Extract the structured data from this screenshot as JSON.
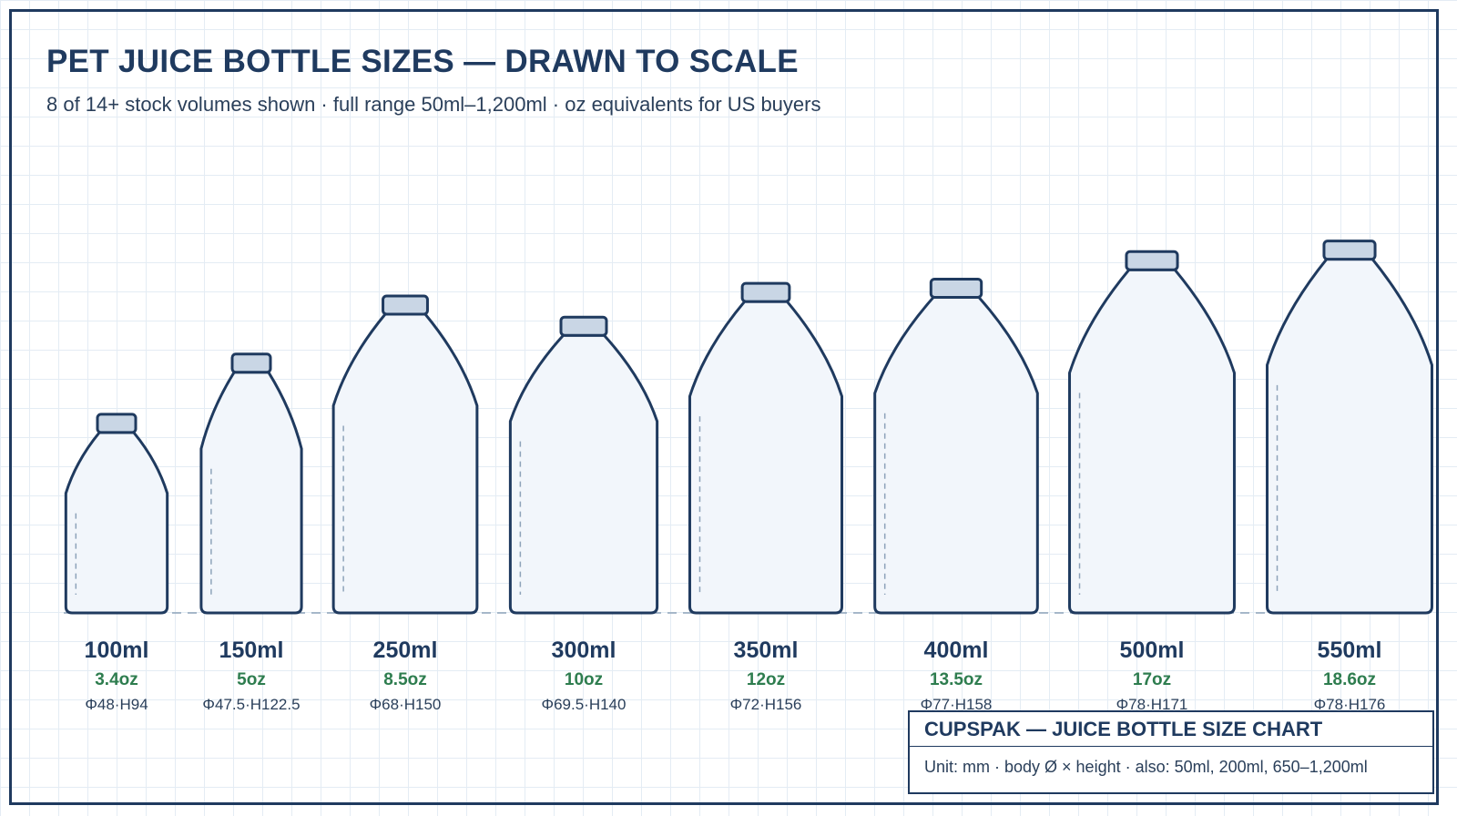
{
  "title": "PET JUICE BOTTLE SIZES — DRAWN TO SCALE",
  "subtitle": "8 of 14+ stock volumes shown · full range 50ml–1,200ml · oz equivalents for US buyers",
  "bottles": [
    {
      "volume": "100ml",
      "oz": "3.4oz",
      "dims": "Φ48·H94",
      "diameter_mm": 48,
      "height_mm": 94
    },
    {
      "volume": "150ml",
      "oz": "5oz",
      "dims": "Φ47.5·H122.5",
      "diameter_mm": 47.5,
      "height_mm": 122.5
    },
    {
      "volume": "250ml",
      "oz": "8.5oz",
      "dims": "Φ68·H150",
      "diameter_mm": 68,
      "height_mm": 150
    },
    {
      "volume": "300ml",
      "oz": "10oz",
      "dims": "Φ69.5·H140",
      "diameter_mm": 69.5,
      "height_mm": 140
    },
    {
      "volume": "350ml",
      "oz": "12oz",
      "dims": "Φ72·H156",
      "diameter_mm": 72,
      "height_mm": 156
    },
    {
      "volume": "400ml",
      "oz": "13.5oz",
      "dims": "Φ77·H158",
      "diameter_mm": 77,
      "height_mm": 158
    },
    {
      "volume": "500ml",
      "oz": "17oz",
      "dims": "Φ78·H171",
      "diameter_mm": 78,
      "height_mm": 171
    },
    {
      "volume": "550ml",
      "oz": "18.6oz",
      "dims": "Φ78·H176",
      "diameter_mm": 78,
      "height_mm": 176
    }
  ],
  "info": {
    "heading": "CUPSPAK — JUICE BOTTLE SIZE CHART",
    "note": "Unit: mm · body Ø × height · also: 50ml, 200ml, 650–1,200ml"
  },
  "colors": {
    "stroke": "#1f3a5f",
    "body_fill": "#f2f6fb",
    "cap_fill": "#c9d6e5",
    "oz_text": "#2e7d4f",
    "guide": "#8ea3ba"
  }
}
